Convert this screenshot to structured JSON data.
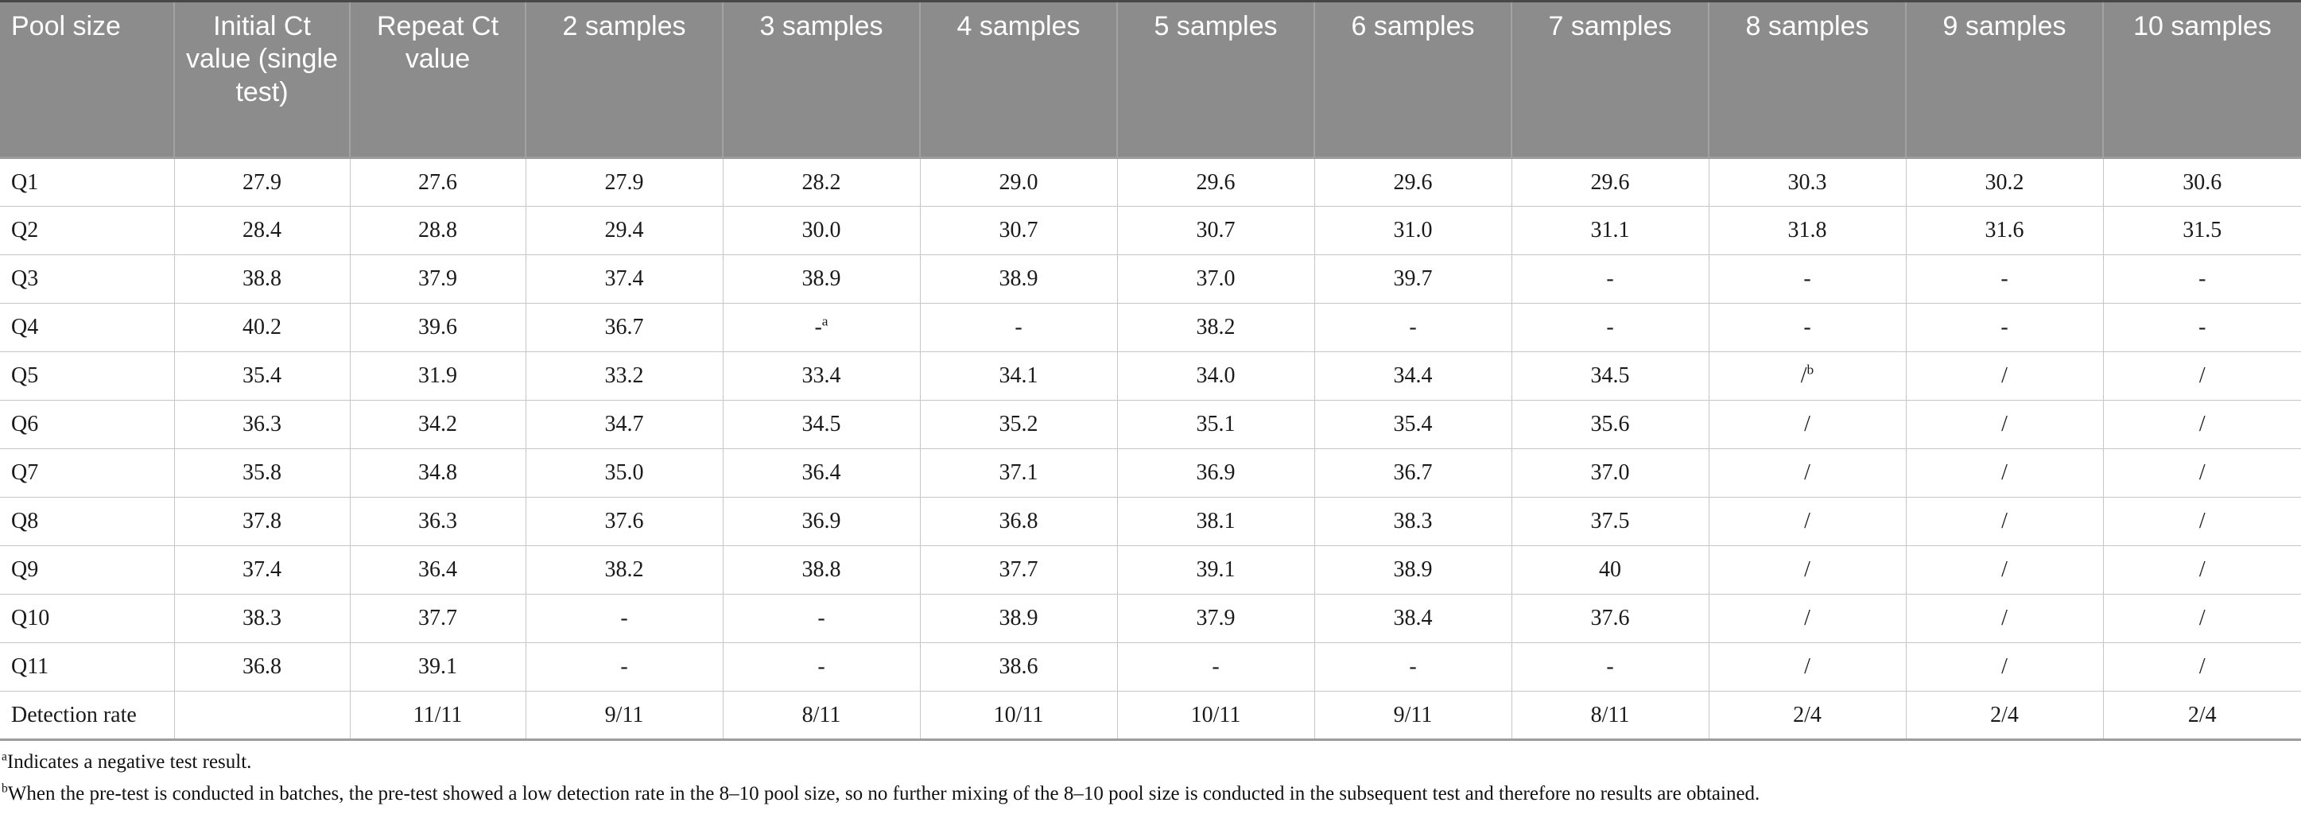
{
  "table": {
    "columns": [
      "Pool size",
      "Initial Ct value (single test)",
      "Repeat Ct value",
      "2 samples",
      "3 samples",
      "4 samples",
      "5 samples",
      "6 samples",
      "7 samples",
      "8 samples",
      "9 samples",
      "10 samples"
    ],
    "rows": [
      {
        "label": "Q1",
        "cells": [
          "27.9",
          "27.6",
          "27.9",
          "28.2",
          "29.0",
          "29.6",
          "29.6",
          "29.6",
          "30.3",
          "30.2",
          "30.6"
        ]
      },
      {
        "label": "Q2",
        "cells": [
          "28.4",
          "28.8",
          "29.4",
          "30.0",
          "30.7",
          "30.7",
          "31.0",
          "31.1",
          "31.8",
          "31.6",
          "31.5"
        ]
      },
      {
        "label": "Q3",
        "cells": [
          "38.8",
          "37.9",
          "37.4",
          "38.9",
          "38.9",
          "37.0",
          "39.7",
          "-",
          "-",
          "-",
          "-"
        ]
      },
      {
        "label": "Q4",
        "cells": [
          "40.2",
          "39.6",
          "36.7",
          "-^a",
          "-",
          "38.2",
          "-",
          "-",
          "-",
          "-",
          "-"
        ]
      },
      {
        "label": "Q5",
        "cells": [
          "35.4",
          "31.9",
          "33.2",
          "33.4",
          "34.1",
          "34.0",
          "34.4",
          "34.5",
          "/^b",
          "/",
          "/"
        ]
      },
      {
        "label": "Q6",
        "cells": [
          "36.3",
          "34.2",
          "34.7",
          "34.5",
          "35.2",
          "35.1",
          "35.4",
          "35.6",
          "/",
          "/",
          "/"
        ]
      },
      {
        "label": "Q7",
        "cells": [
          "35.8",
          "34.8",
          "35.0",
          "36.4",
          "37.1",
          "36.9",
          "36.7",
          "37.0",
          "/",
          "/",
          "/"
        ]
      },
      {
        "label": "Q8",
        "cells": [
          "37.8",
          "36.3",
          "37.6",
          "36.9",
          "36.8",
          "38.1",
          "38.3",
          "37.5",
          "/",
          "/",
          "/"
        ]
      },
      {
        "label": "Q9",
        "cells": [
          "37.4",
          "36.4",
          "38.2",
          "38.8",
          "37.7",
          "39.1",
          "38.9",
          "40",
          "/",
          "/",
          "/"
        ]
      },
      {
        "label": "Q10",
        "cells": [
          "38.3",
          "37.7",
          "-",
          "-",
          "38.9",
          "37.9",
          "38.4",
          "37.6",
          "/",
          "/",
          "/"
        ]
      },
      {
        "label": "Q11",
        "cells": [
          "36.8",
          "39.1",
          "-",
          "-",
          "38.6",
          "-",
          "-",
          "-",
          "/",
          "/",
          "/"
        ]
      },
      {
        "label": "Detection rate",
        "cells": [
          "",
          "11/11",
          "9/11",
          "8/11",
          "10/11",
          "10/11",
          "9/11",
          "8/11",
          "2/4",
          "2/4",
          "2/4"
        ]
      }
    ]
  },
  "footnotes": [
    {
      "sup": "a",
      "text": "Indicates a negative test result."
    },
    {
      "sup": "b",
      "text": "When the pre-test is conducted in batches, the pre-test showed a low detection rate in the 8–10 pool size, so no further mixing of the 8–10 pool size is conducted in the subsequent test and therefore no results are obtained."
    }
  ],
  "colors": {
    "header_background": "#8c8c8c",
    "header_text": "#ffffff",
    "body_border": "#c6c6c6",
    "table_top_border": "#484848",
    "table_rule": "#9d9d9d"
  }
}
